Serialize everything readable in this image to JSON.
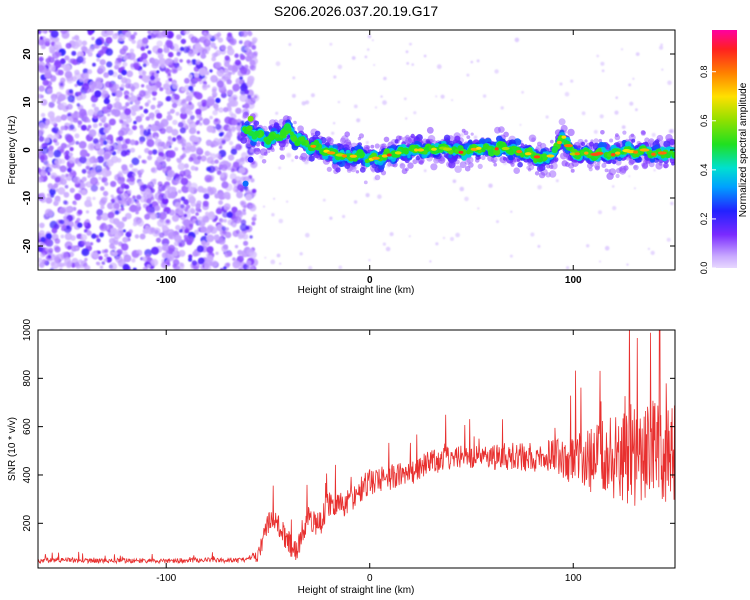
{
  "chart_data": [
    {
      "type": "heatmap",
      "title": "S206.2026.037.20.19.G17",
      "xlabel": "Height of straight line (km)",
      "ylabel": "Frequency (Hz)",
      "xlim": [
        -163,
        150
      ],
      "ylim": [
        -25,
        25
      ],
      "xticks": [
        -100,
        0,
        100
      ],
      "xtick_labels": [
        "-100",
        "0",
        "100"
      ],
      "yticks": [
        -20,
        -10,
        0,
        10,
        20
      ],
      "ytick_labels": [
        "-20",
        "-10",
        "0",
        "10",
        "20"
      ],
      "colorbar": {
        "label": "Normalized spectral amplitude",
        "range": [
          0,
          0.97
        ],
        "ticks": [
          0.0,
          0.2,
          0.4,
          0.6,
          0.8
        ],
        "tick_labels": [
          "0.0",
          "0.2",
          "0.4",
          "0.6",
          "0.8"
        ],
        "colormap": "rainbow"
      },
      "signal_ridge": {
        "x": [
          -60,
          -55,
          -50,
          -45,
          -40,
          -35,
          -30,
          -25,
          -20,
          -15,
          -10,
          -5,
          0,
          5,
          10,
          15,
          20,
          25,
          30,
          35,
          40,
          45,
          50,
          55,
          60,
          65,
          70,
          75,
          80,
          85,
          90,
          95,
          100,
          105,
          110,
          115,
          120,
          125,
          130,
          135,
          140,
          145,
          150
        ],
        "y": [
          4,
          3,
          2,
          3,
          4,
          2,
          1,
          0.5,
          -0.5,
          -1,
          -1.5,
          -1,
          -2,
          -1.5,
          -1,
          -0.5,
          0,
          0,
          0,
          0.5,
          0,
          -0.5,
          0,
          0.5,
          0,
          0.5,
          0,
          -0.5,
          -1,
          -2,
          -1,
          3,
          -1,
          -0.5,
          -1,
          -0.5,
          -1,
          0,
          -0.5,
          0,
          -1,
          -0.5,
          -1
        ]
      },
      "noise_region_x": [
        -163,
        -60
      ]
    },
    {
      "type": "line",
      "title": "",
      "xlabel": "Height of straight line (km)",
      "ylabel": "SNR (10 * v/v)",
      "xlim": [
        -163,
        150
      ],
      "ylim": [
        15,
        1000
      ],
      "xticks": [
        -100,
        0,
        100
      ],
      "xtick_labels": [
        "-100",
        "0",
        "100"
      ],
      "yticks": [
        200,
        400,
        600,
        800,
        1000
      ],
      "ytick_labels": [
        "200",
        "400",
        "600",
        "800",
        "1000"
      ],
      "series": [
        {
          "name": "SNR",
          "color": "#e8302f",
          "envelope_x": [
            -163,
            -150,
            -140,
            -120,
            -100,
            -80,
            -65,
            -55,
            -50,
            -47,
            -44,
            -40,
            -36,
            -33,
            -30,
            -25,
            -20,
            -15,
            -10,
            -5,
            0,
            10,
            20,
            30,
            40,
            50,
            60,
            70,
            80,
            90,
            100,
            110,
            120,
            130,
            140,
            145,
            150
          ],
          "envelope_y": [
            45,
            50,
            45,
            45,
            45,
            48,
            45,
            60,
            200,
            230,
            180,
            120,
            80,
            170,
            220,
            190,
            280,
            270,
            290,
            340,
            370,
            390,
            410,
            450,
            470,
            480,
            470,
            480,
            470,
            480,
            460,
            460,
            480,
            480,
            500,
            480,
            490
          ],
          "noise_amplitude_x": [
            -163,
            -60,
            -50,
            -20,
            50,
            90,
            110,
            130,
            150
          ],
          "noise_amplitude": [
            10,
            10,
            45,
            55,
            50,
            70,
            140,
            220,
            200
          ]
        }
      ]
    }
  ]
}
